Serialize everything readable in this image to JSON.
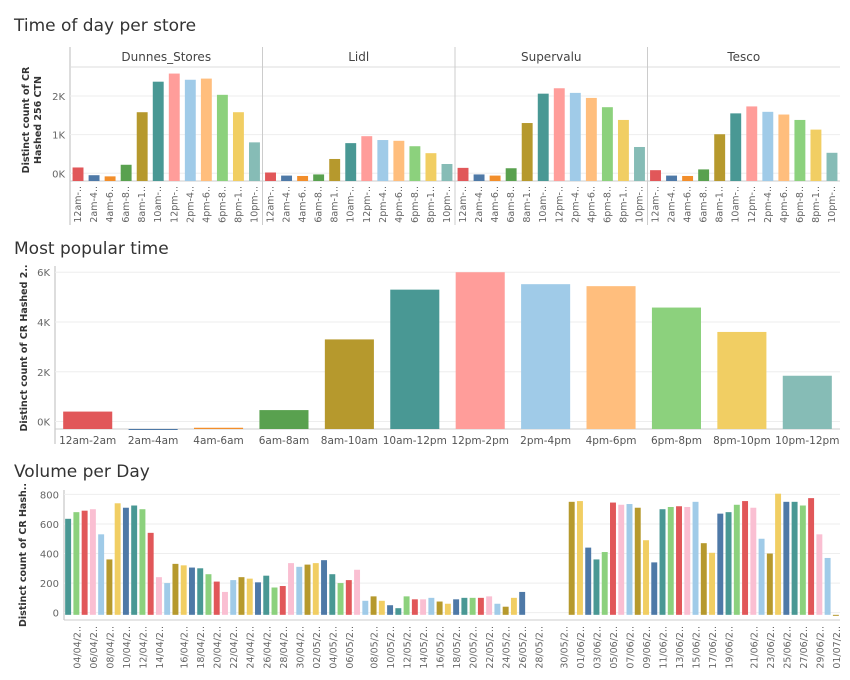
{
  "palette": {
    "12am-2am": "#e15759",
    "2am-4am": "#4e79a7",
    "4am-6am": "#f28e2b",
    "6am-8am": "#59a14f",
    "8am-10am": "#b6992d",
    "10am-12pm": "#499894",
    "12pm-2pm": "#ff9d9a",
    "2pm-4pm": "#a0cbe8",
    "4pm-6pm": "#ffbe7d",
    "6pm-8pm": "#8cd17d",
    "8pm-10pm": "#f1ce63",
    "10pm-12pm": "#86bcb6",
    "day_cycle": [
      "#499894",
      "#8cd17d",
      "#e15759",
      "#fabfd2",
      "#a0cbe8",
      "#b6992d",
      "#f1ce63",
      "#4e79a7"
    ]
  },
  "chart_data": [
    {
      "type": "bar",
      "title": "Time of day per store",
      "ylabel_line1": "Distinct count of CR",
      "ylabel_line2": "Hashed 256 CTN",
      "yticks": [
        {
          "value": 0,
          "label": "0K"
        },
        {
          "value": 1000,
          "label": "1K"
        },
        {
          "value": 2000,
          "label": "2K"
        }
      ],
      "ylim": [
        -200,
        2750
      ],
      "grid": true,
      "categories": [
        "12am-2am",
        "2am-4am",
        "4am-6am",
        "6am-8am",
        "8am-10am",
        "10am-12pm",
        "12pm-2pm",
        "2pm-4pm",
        "4pm-6pm",
        "6pm-8pm",
        "8pm-10pm",
        "10pm-12pm"
      ],
      "tick_labels": [
        "12am-..",
        "2am-4..",
        "4am-6..",
        "6am-8..",
        "8am-1..",
        "10am-..",
        "12pm-..",
        "2pm-4..",
        "4pm-6..",
        "6pm-8..",
        "8pm-1..",
        "10pm-.."
      ],
      "panels": [
        {
          "name": "Dunnes_Stores",
          "values": [
            150,
            -50,
            -80,
            220,
            1580,
            2370,
            2580,
            2420,
            2450,
            2030,
            1580,
            800
          ]
        },
        {
          "name": "Lidl",
          "values": [
            20,
            -60,
            -70,
            -30,
            370,
            780,
            960,
            860,
            840,
            700,
            520,
            240
          ]
        },
        {
          "name": "Supervalu",
          "values": [
            140,
            -30,
            -60,
            130,
            1300,
            2060,
            2200,
            2080,
            1950,
            1710,
            1380,
            680
          ]
        },
        {
          "name": "Tesco",
          "values": [
            80,
            -60,
            -70,
            100,
            1010,
            1550,
            1730,
            1590,
            1520,
            1380,
            1130,
            530
          ]
        }
      ]
    },
    {
      "type": "bar",
      "title": "Most popular time",
      "ylabel": "Distinct count of CR Hashed 2..",
      "yticks": [
        {
          "value": 0,
          "label": "0K"
        },
        {
          "value": 2000,
          "label": "2K"
        },
        {
          "value": 4000,
          "label": "4K"
        },
        {
          "value": 6000,
          "label": "6K"
        }
      ],
      "ylim": [
        -300,
        6250
      ],
      "grid": true,
      "categories": [
        "12am-2am",
        "2am-4am",
        "4am-6am",
        "6am-8am",
        "8am-10am",
        "10am-12pm",
        "12pm-2pm",
        "2pm-4pm",
        "4pm-6pm",
        "6pm-8pm",
        "8pm-10pm",
        "10pm-12pm"
      ],
      "values": [
        400,
        -300,
        -250,
        460,
        3300,
        5300,
        6000,
        5520,
        5440,
        4580,
        3600,
        1840
      ]
    },
    {
      "type": "bar",
      "title": "Volume per Day",
      "ylabel": "Distinct count of CR Hash..",
      "yticks": [
        {
          "value": 0,
          "label": "0"
        },
        {
          "value": 200,
          "label": "200"
        },
        {
          "value": 400,
          "label": "400"
        },
        {
          "value": 600,
          "label": "600"
        },
        {
          "value": 800,
          "label": "800"
        }
      ],
      "ylim": [
        -50,
        830
      ],
      "grid": true,
      "tick_labels": [
        "04/04/2..",
        "06/04/2..",
        "08/04/2..",
        "10/04/2..",
        "12/04/2..",
        "14/04/2..",
        "16/04/2..",
        "18/04/2..",
        "20/04/2..",
        "22/04/2..",
        "24/04/2..",
        "26/04/2..",
        "28/04/2..",
        "30/04/2..",
        "02/05/2..",
        "04/05/2..",
        "06/05/2..",
        "08/05/2..",
        "10/05/2..",
        "12/05/2..",
        "14/05/2..",
        "16/05/2..",
        "18/05/2..",
        "20/05/2..",
        "22/05/2..",
        "24/05/2..",
        "26/05/2..",
        "28/05/2..",
        "30/05/2..",
        "01/06/2..",
        "03/06/2..",
        "05/06/2..",
        "07/06/2..",
        "09/06/2..",
        "11/06/2..",
        "13/06/2..",
        "15/06/2..",
        "17/06/2..",
        "19/06/2..",
        "21/06/2..",
        "23/06/2..",
        "25/06/2..",
        "27/06/2..",
        "29/06/2..",
        "01/07/2.."
      ],
      "values": [
        635,
        680,
        690,
        700,
        530,
        360,
        740,
        710,
        725,
        700,
        540,
        240,
        200,
        330,
        320,
        305,
        300,
        260,
        210,
        140,
        220,
        240,
        230,
        205,
        250,
        170,
        180,
        335,
        310,
        325,
        335,
        355,
        260,
        200,
        220,
        290,
        80,
        110,
        80,
        50,
        30,
        110,
        90,
        90,
        100,
        75,
        60,
        90,
        100,
        100,
        100,
        110,
        60,
        40,
        100,
        140,
        0,
        0,
        0,
        0,
        0,
        750,
        755,
        440,
        360,
        410,
        745,
        730,
        735,
        710,
        490,
        340,
        700,
        715,
        720,
        715,
        750,
        470,
        405,
        670,
        680,
        730,
        755,
        710,
        500,
        400,
        805,
        750,
        750,
        725,
        775,
        530,
        370,
        -20
      ]
    }
  ]
}
